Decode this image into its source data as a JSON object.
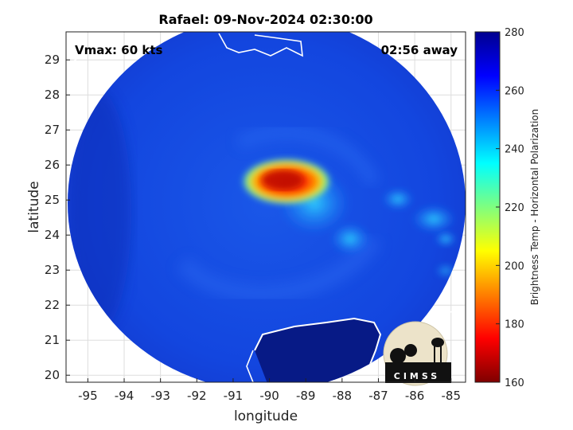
{
  "chart_data": {
    "type": "heatmap",
    "title": "Rafael: 09-Nov-2024 02:30:00",
    "xlabel": "longitude",
    "ylabel": "latitude",
    "xlim": [
      -95.6,
      -84.6
    ],
    "ylim": [
      19.8,
      29.8
    ],
    "xticks": [
      -95,
      -94,
      -93,
      -92,
      -91,
      -90,
      -89,
      -88,
      -87,
      -86,
      -85
    ],
    "yticks": [
      20,
      21,
      22,
      23,
      24,
      25,
      26,
      27,
      28,
      29
    ],
    "grid": true,
    "annotations": {
      "vmax": "Vmax: 60 kts",
      "away": "02:56 away"
    },
    "storm_center": {
      "lon": -89.6,
      "lat": 25.5
    },
    "colorbar": {
      "label": "Brightness Temp - Horizontal Polarization",
      "min": 160,
      "max": 280,
      "ticks": [
        160,
        180,
        200,
        220,
        240,
        260,
        280
      ],
      "colormap": [
        "#7f0000",
        "#ff0000",
        "#ff7f00",
        "#ffff00",
        "#7fff7f",
        "#00ffff",
        "#007fff",
        "#0000ff",
        "#00008f"
      ]
    },
    "logo_text": "CIMSS"
  }
}
